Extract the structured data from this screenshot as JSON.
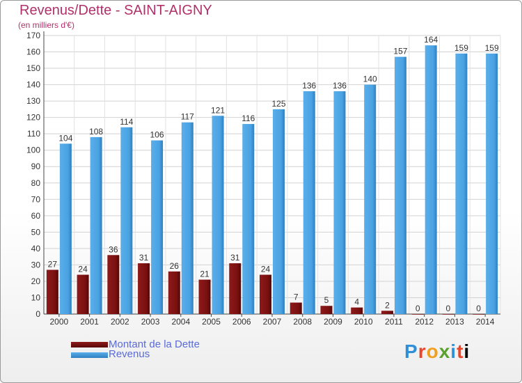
{
  "title": "Revenus/Dette - SAINT-AIGNY",
  "subtitle": "(en milliers d'€)",
  "logo": {
    "text": "Proxiti",
    "letters": [
      "P",
      "r",
      "o",
      "x",
      "i",
      "t",
      "i"
    ]
  },
  "colors": {
    "dette": "#7a1010",
    "revenus": "#3d95da",
    "axis_text": "#333333",
    "title": "#b0306a"
  },
  "chart_data": {
    "type": "bar",
    "categories": [
      "2000",
      "2001",
      "2002",
      "2003",
      "2004",
      "2005",
      "2006",
      "2007",
      "2008",
      "2009",
      "2010",
      "2011",
      "2012",
      "2013",
      "2014"
    ],
    "series": [
      {
        "name": "Montant de la Dette",
        "values": [
          27,
          24,
          36,
          31,
          26,
          21,
          31,
          24,
          7,
          5,
          4,
          2,
          0,
          0,
          0
        ]
      },
      {
        "name": "Revenus",
        "values": [
          104,
          108,
          114,
          106,
          117,
          121,
          116,
          125,
          136,
          136,
          140,
          157,
          164,
          159,
          159
        ]
      }
    ],
    "yticks": [
      0,
      10,
      20,
      30,
      40,
      50,
      60,
      70,
      80,
      90,
      100,
      110,
      120,
      130,
      140,
      150,
      160,
      170
    ],
    "ylim": [
      0,
      170
    ],
    "grid": true,
    "legend_position": "bottom-left"
  }
}
